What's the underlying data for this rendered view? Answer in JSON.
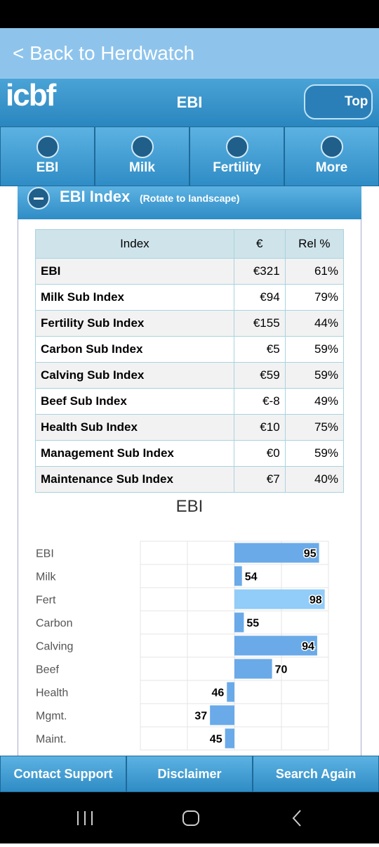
{
  "header": {
    "back_link": "< Back to Herdwatch",
    "logo": "icbf",
    "title": "EBI",
    "top_button": "Top"
  },
  "tabs": [
    "EBI",
    "Milk",
    "Fertility",
    "More"
  ],
  "section": {
    "title": "EBI Index",
    "note": "(Rotate to landscape)"
  },
  "table": {
    "columns": [
      "Index",
      "€",
      "Rel %"
    ],
    "rows": [
      [
        "EBI",
        "€321",
        "61%"
      ],
      [
        "Milk Sub Index",
        "€94",
        "79%"
      ],
      [
        "Fertility Sub Index",
        "€155",
        "44%"
      ],
      [
        "Carbon Sub Index",
        "€5",
        "59%"
      ],
      [
        "Calving Sub Index",
        "€59",
        "59%"
      ],
      [
        "Beef Sub Index",
        "€-8",
        "49%"
      ],
      [
        "Health Sub Index",
        "€10",
        "75%"
      ],
      [
        "Management Sub Index",
        "€0",
        "59%"
      ],
      [
        "Maintenance Sub Index",
        "€7",
        "40%"
      ]
    ]
  },
  "chart_data": {
    "type": "bar",
    "orientation": "horizontal",
    "title": "EBI",
    "categories": [
      "EBI",
      "Milk",
      "Fert",
      "Carbon",
      "Calving",
      "Beef",
      "Health",
      "Mgmt.",
      "Maint."
    ],
    "values": [
      95,
      54,
      98,
      55,
      94,
      70,
      46,
      37,
      45
    ],
    "colors": [
      "#6aaae8",
      "#6aaae8",
      "#92ccf8",
      "#6aaae8",
      "#6aaae8",
      "#6aaae8",
      "#6aaae8",
      "#6aaae8",
      "#6aaae8"
    ],
    "xlim": [
      0,
      100
    ],
    "grid": true
  },
  "footer": [
    "Contact Support",
    "Disclaimer",
    "Search Again"
  ]
}
